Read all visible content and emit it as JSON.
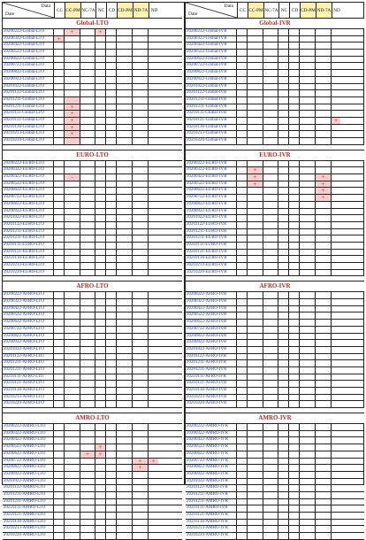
{
  "corner": {
    "top": "Data",
    "bottom": "Date"
  },
  "columns": [
    {
      "label": "CC",
      "hl": false
    },
    {
      "label": "CC-PM",
      "hl": true
    },
    {
      "label": "NC-7A",
      "hl": false
    },
    {
      "label": "NC",
      "hl": false
    },
    {
      "label": "CD",
      "hl": false
    },
    {
      "label": "CD-PM",
      "hl": true
    },
    {
      "label": "ND-7A",
      "hl": true
    },
    {
      "label": "ND",
      "hl": false
    }
  ],
  "left": [
    {
      "title": "Global-LTO",
      "rows": [
        {
          "label": "20200222-Global-LTO",
          "cells": {
            "1": "+",
            "3": "+"
          }
        },
        {
          "label": "20200322-Global-LTO",
          "cells": {
            "0": "+"
          }
        },
        {
          "label": "20200422-Global-LTO",
          "cells": {}
        },
        {
          "label": "20200522-Global-LTO",
          "cells": {}
        },
        {
          "label": "20200622-Global-LTO",
          "cells": {}
        },
        {
          "label": "20200722-Global-LTO",
          "cells": {}
        },
        {
          "label": "20200822-Global-LTO",
          "cells": {}
        },
        {
          "label": "20200922-Global-LTO",
          "cells": {}
        },
        {
          "label": "20201022-Global-LTO",
          "cells": {}
        },
        {
          "label": "20201122-Global-LTO",
          "cells": {}
        },
        {
          "label": "20201211-Global-LTO",
          "cells": {
            "1": ""
          }
        },
        {
          "label": "20201231-Global-LTO",
          "cells": {
            "1": "+"
          }
        },
        {
          "label": "20210111-Global-LTO",
          "cells": {
            "1": "+"
          }
        },
        {
          "label": "20210121-Global-LTO",
          "cells": {
            "1": "+"
          }
        },
        {
          "label": "20210130-Global-LTO",
          "cells": {
            "1": "+"
          }
        },
        {
          "label": "20210213-Global-LTO",
          "cells": {
            "1": "+"
          }
        },
        {
          "label": "20210220-Global-LTO",
          "cells": {
            "1": ""
          }
        }
      ]
    },
    {
      "title": "EURO-LTO",
      "rows": [
        {
          "label": "20200222-EURO-LTO",
          "cells": {}
        },
        {
          "label": "20200322-EURO-LTO",
          "cells": {}
        },
        {
          "label": "20200422-EURO-LTO",
          "cells": {
            "1": "-"
          }
        },
        {
          "label": "20200522-EURO-LTO",
          "cells": {}
        },
        {
          "label": "20200622-EURO-LTO",
          "cells": {}
        },
        {
          "label": "20200722-EURO-LTO",
          "cells": {}
        },
        {
          "label": "20200822-EURO-LTO",
          "cells": {}
        },
        {
          "label": "20200922-EURO-LTO",
          "cells": {}
        },
        {
          "label": "20201022-EURO-LTO",
          "cells": {}
        },
        {
          "label": "20201122-EURO-LTO",
          "cells": {}
        },
        {
          "label": "20201211-EURO-LTO",
          "cells": {}
        },
        {
          "label": "20201231-EURO-LTO",
          "cells": {}
        },
        {
          "label": "20210111-EURO-LTO",
          "cells": {}
        },
        {
          "label": "20210121-EURO-LTO",
          "cells": {}
        },
        {
          "label": "20210130-EURO-LTO",
          "cells": {}
        },
        {
          "label": "20210213-EURO-LTO",
          "cells": {}
        },
        {
          "label": "20210220-EURO-LTO",
          "cells": {}
        }
      ]
    },
    {
      "title": "AFRO-LTO",
      "rows": [
        {
          "label": "20200222-AFRO-LTO",
          "cells": {}
        },
        {
          "label": "20200322-AFRO-LTO",
          "cells": {}
        },
        {
          "label": "20200422-AFRO-LTO",
          "cells": {}
        },
        {
          "label": "20200522-AFRO-LTO",
          "cells": {}
        },
        {
          "label": "20200622-AFRO-LTO",
          "cells": {}
        },
        {
          "label": "20200722-AFRO-LTO",
          "cells": {}
        },
        {
          "label": "20200822-AFRO-LTO",
          "cells": {}
        },
        {
          "label": "20200922-AFRO-LTO",
          "cells": {}
        },
        {
          "label": "20201022-AFRO-LTO",
          "cells": {}
        },
        {
          "label": "20201122-AFRO-LTO",
          "cells": {}
        },
        {
          "label": "20201211-AFRO-LTO",
          "cells": {}
        },
        {
          "label": "20201231-AFRO-LTO",
          "cells": {}
        },
        {
          "label": "20210111-AFRO-LTO",
          "cells": {}
        },
        {
          "label": "20210121-AFRO-LTO",
          "cells": {}
        },
        {
          "label": "20210130-AFRO-LTO",
          "cells": {}
        },
        {
          "label": "20210213-AFRO-LTO",
          "cells": {}
        },
        {
          "label": "20210220-AFRO-LTO",
          "cells": {}
        }
      ]
    },
    {
      "title": "AMRO-LTO",
      "rows": [
        {
          "label": "20200222-AMRO-LTO",
          "cells": {}
        },
        {
          "label": "20200322-AMRO-LTO",
          "cells": {}
        },
        {
          "label": "20200422-AMRO-LTO",
          "cells": {}
        },
        {
          "label": "20200522-AMRO-LTO",
          "cells": {
            "3": "+"
          }
        },
        {
          "label": "20200622-AMRO-LTO",
          "cells": {
            "2": "+",
            "3": "+"
          }
        },
        {
          "label": "20200722-AMRO-LTO",
          "cells": {
            "6": "+",
            "7": "+"
          }
        },
        {
          "label": "20200822-AMRO-LTO",
          "cells": {
            "6": "+"
          }
        },
        {
          "label": "20200922-AMRO-LTO",
          "cells": {}
        },
        {
          "label": "20201022-AMRO-LTO",
          "cells": {}
        },
        {
          "label": "20201122-AMRO-LTO",
          "cells": {}
        },
        {
          "label": "20201211-AMRO-LTO",
          "cells": {}
        },
        {
          "label": "20201231-AMRO-LTO",
          "cells": {}
        },
        {
          "label": "20210111-AMRO-LTO",
          "cells": {}
        },
        {
          "label": "20210121-AMRO-LTO",
          "cells": {}
        },
        {
          "label": "20210130-AMRO-LTO",
          "cells": {}
        },
        {
          "label": "20210213-AMRO-LTO",
          "cells": {}
        },
        {
          "label": "20210220-AMRO-LTO",
          "cells": {}
        }
      ]
    }
  ],
  "right": [
    {
      "title": "Global-IVR",
      "rows": [
        {
          "label": "20200222-Global-IVR",
          "cells": {}
        },
        {
          "label": "20200322-Global-IVR",
          "cells": {}
        },
        {
          "label": "20200422-Global-IVR",
          "cells": {}
        },
        {
          "label": "20200522-Global-IVR",
          "cells": {}
        },
        {
          "label": "20200622-Global-IVR",
          "cells": {}
        },
        {
          "label": "20200722-Global-IVR",
          "cells": {}
        },
        {
          "label": "20200822-Global-IVR",
          "cells": {}
        },
        {
          "label": "20200922-Global-IVR",
          "cells": {}
        },
        {
          "label": "20201022-Global-IVR",
          "cells": {}
        },
        {
          "label": "20201122-Global-IVR",
          "cells": {}
        },
        {
          "label": "20201211-Global-IVR",
          "cells": {}
        },
        {
          "label": "20201231-Global-IVR",
          "cells": {}
        },
        {
          "label": "20210111-Global-IVR",
          "cells": {}
        },
        {
          "label": "20210121-Global-IVR",
          "cells": {
            "7": "+"
          }
        },
        {
          "label": "20210130-Global-IVR",
          "cells": {}
        },
        {
          "label": "20210213-Global-IVR",
          "cells": {}
        },
        {
          "label": "20210220-Global-IVR",
          "cells": {}
        }
      ]
    },
    {
      "title": "EURO-IVR",
      "rows": [
        {
          "label": "20200222-EURO-IVR",
          "cells": {}
        },
        {
          "label": "20200322-EURO-IVR",
          "cells": {
            "1": "+"
          }
        },
        {
          "label": "20200422-EURO-IVR",
          "cells": {
            "1": "+",
            "6": "+"
          }
        },
        {
          "label": "20200522-EURO-IVR",
          "cells": {
            "1": "+",
            "6": "+"
          }
        },
        {
          "label": "20200622-EURO-IVR",
          "cells": {
            "6": "+"
          }
        },
        {
          "label": "20200722-EURO-IVR",
          "cells": {
            "6": "+"
          }
        },
        {
          "label": "20200822-EURO-IVR",
          "cells": {}
        },
        {
          "label": "20200922-EURO-IVR",
          "cells": {}
        },
        {
          "label": "20201022-EURO-IVR",
          "cells": {}
        },
        {
          "label": "20201122-EURO-IVR",
          "cells": {}
        },
        {
          "label": "20201211-EURO-IVR",
          "cells": {}
        },
        {
          "label": "20201231-EURO-IVR",
          "cells": {}
        },
        {
          "label": "20210111-EURO-IVR",
          "cells": {}
        },
        {
          "label": "20210121-EURO-IVR",
          "cells": {}
        },
        {
          "label": "20210130-EURO-IVR",
          "cells": {}
        },
        {
          "label": "20210213-EURO-IVR",
          "cells": {}
        },
        {
          "label": "20210220-EURO-IVR",
          "cells": {}
        }
      ]
    },
    {
      "title": "AFRO-IVR",
      "rows": [
        {
          "label": "20200222-AFRO-IVR",
          "cells": {}
        },
        {
          "label": "20200322-AFRO-IVR",
          "cells": {}
        },
        {
          "label": "20200422-AFRO-IVR",
          "cells": {}
        },
        {
          "label": "20200522-AFRO-IVR",
          "cells": {}
        },
        {
          "label": "20200622-AFRO-IVR",
          "cells": {}
        },
        {
          "label": "20200722-AFRO-IVR",
          "cells": {}
        },
        {
          "label": "20200822-AFRO-IVR",
          "cells": {}
        },
        {
          "label": "20200922-AFRO-IVR",
          "cells": {}
        },
        {
          "label": "20201022-AFRO-IVR",
          "cells": {}
        },
        {
          "label": "20201122-AFRO-IVR",
          "cells": {}
        },
        {
          "label": "20201211-AFRO-IVR",
          "cells": {}
        },
        {
          "label": "20201231-AFRO-IVR",
          "cells": {}
        },
        {
          "label": "20210111-AFRO-IVR",
          "cells": {}
        },
        {
          "label": "20210121-AFRO-IVR",
          "cells": {}
        },
        {
          "label": "20210130-AFRO-IVR",
          "cells": {}
        },
        {
          "label": "20210213-AFRO-IVR",
          "cells": {}
        },
        {
          "label": "20210220-AFRO-IVR",
          "cells": {}
        }
      ]
    },
    {
      "title": "AMRO-IVR",
      "rows": [
        {
          "label": "20200222-AMRO-IVR",
          "cells": {}
        },
        {
          "label": "20200322-AMRO-IVR",
          "cells": {}
        },
        {
          "label": "20200422-AMRO-IVR",
          "cells": {}
        },
        {
          "label": "20200522-AMRO-IVR",
          "cells": {}
        },
        {
          "label": "20200622-AMRO-IVR",
          "cells": {}
        },
        {
          "label": "20200722-AMRO-IVR",
          "cells": {}
        },
        {
          "label": "20200822-AMRO-IVR",
          "cells": {}
        },
        {
          "label": "20200922-AMRO-IVR",
          "cells": {}
        },
        {
          "label": "20201022-AMRO-IVR",
          "cells": {}
        },
        {
          "label": "20201122-AMRO-IVR",
          "cells": {}
        },
        {
          "label": "20201211-AMRO-IVR",
          "cells": {}
        },
        {
          "label": "20201231-AMRO-IVR",
          "cells": {}
        },
        {
          "label": "20210111-AMRO-IVR",
          "cells": {}
        },
        {
          "label": "20210121-AMRO-IVR",
          "cells": {}
        },
        {
          "label": "20210130-AMRO-IVR",
          "cells": {}
        },
        {
          "label": "20210213-AMRO-IVR",
          "cells": {}
        },
        {
          "label": "20210220-AMRO-IVR",
          "cells": {}
        }
      ]
    }
  ]
}
